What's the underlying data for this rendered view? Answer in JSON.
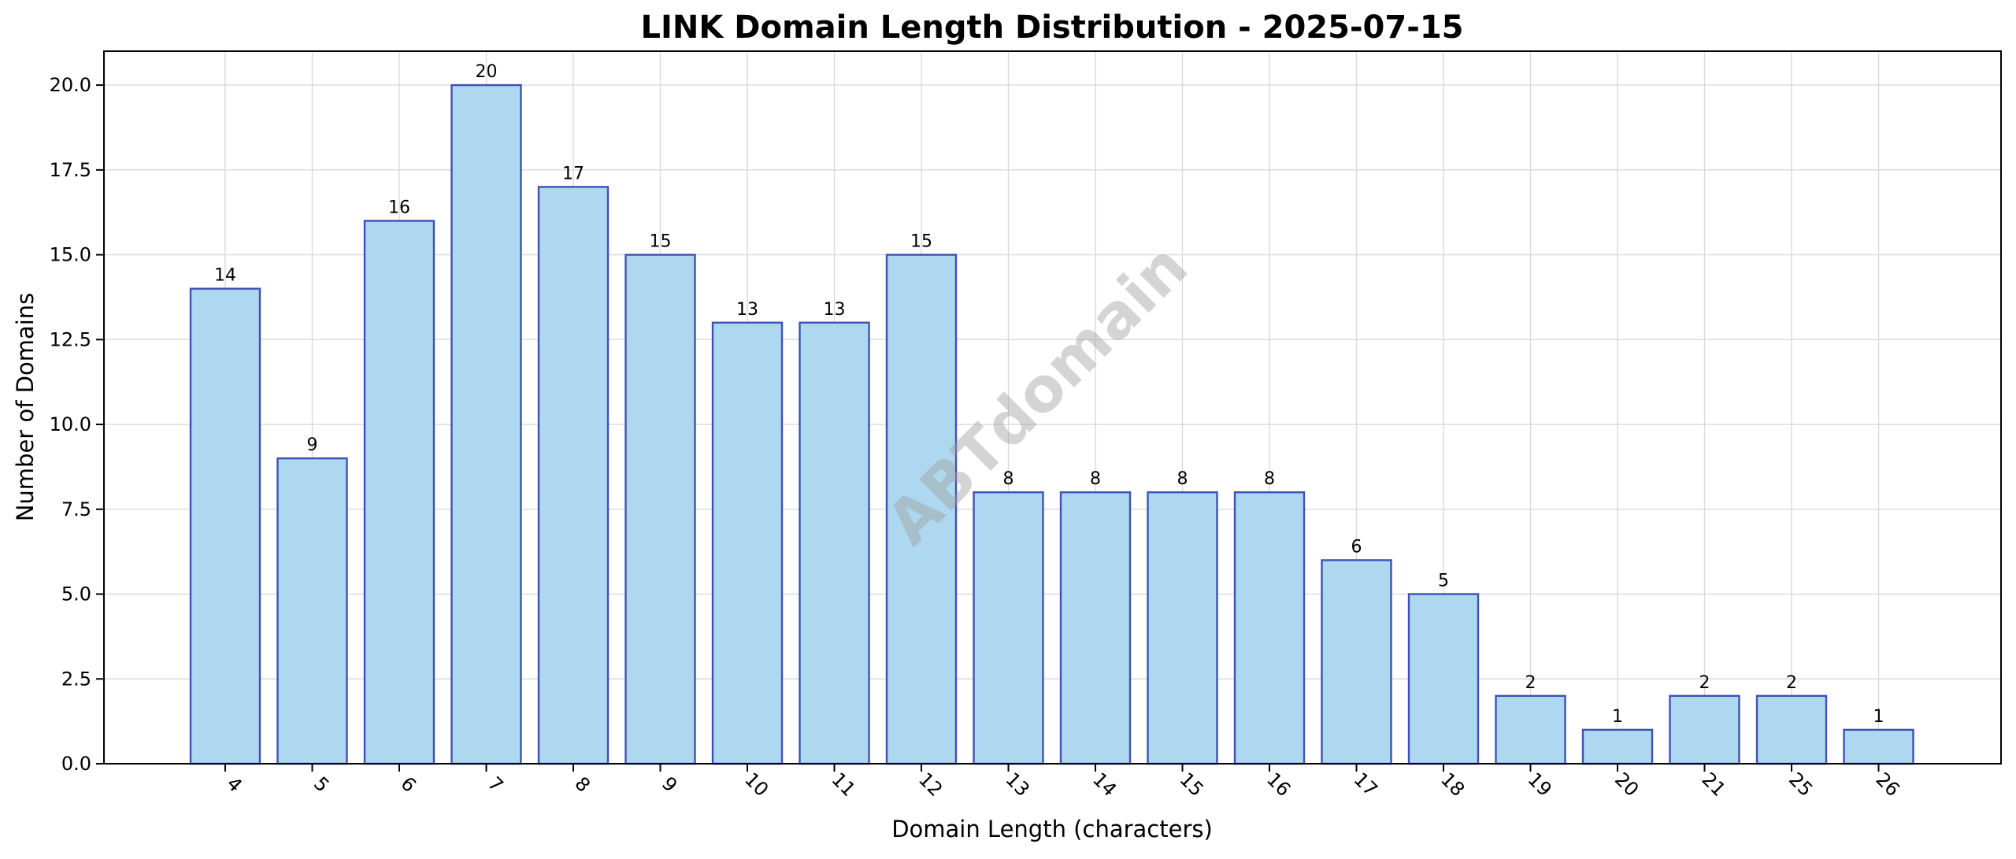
{
  "chart_data": {
    "type": "bar",
    "title": "LINK Domain Length Distribution - 2025-07-15",
    "xlabel": "Domain Length (characters)",
    "ylabel": "Number of Domains",
    "categories": [
      "4",
      "5",
      "6",
      "7",
      "8",
      "9",
      "10",
      "11",
      "12",
      "13",
      "14",
      "15",
      "16",
      "17",
      "18",
      "19",
      "20",
      "21",
      "25",
      "26"
    ],
    "values": [
      14,
      9,
      16,
      20,
      17,
      15,
      13,
      13,
      15,
      8,
      8,
      8,
      8,
      6,
      5,
      2,
      1,
      2,
      2,
      1
    ],
    "ylim": [
      0,
      21
    ],
    "yticks": [
      "0.0",
      "2.5",
      "5.0",
      "7.5",
      "10.0",
      "12.5",
      "15.0",
      "17.5",
      "20.0"
    ],
    "grid": true,
    "colors": {
      "bar_fill": "#add8ef",
      "bar_edge": "#3f51b5"
    },
    "watermark": "ABTdomain"
  }
}
